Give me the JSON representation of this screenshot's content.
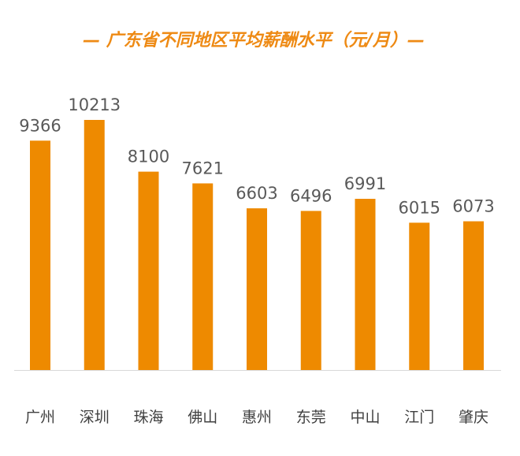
{
  "chart_data": {
    "type": "bar",
    "title": "— 广东省不同地区平均薪酬水平（元/月）—",
    "categories": [
      "广州",
      "深圳",
      "珠海",
      "佛山",
      "惠州",
      "东莞",
      "中山",
      "江门",
      "肇庆"
    ],
    "values": [
      9366,
      10213,
      8100,
      7621,
      6603,
      6496,
      6991,
      6015,
      6073
    ],
    "xlabel": "",
    "ylabel": "",
    "ylim": [
      0,
      10213
    ],
    "grid": false,
    "legend": "none",
    "bar_color": "#EE8A00",
    "axis_color": "#D9D9D9"
  }
}
